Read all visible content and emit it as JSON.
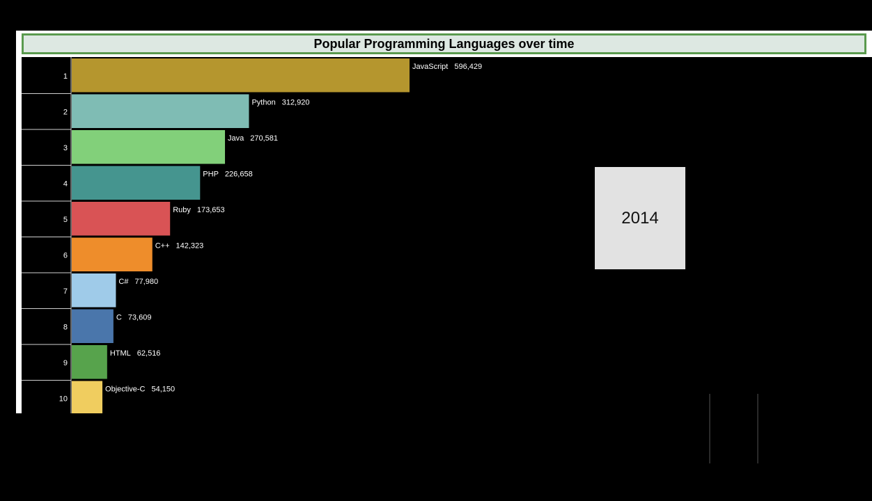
{
  "chart_data": {
    "type": "bar",
    "orientation": "horizontal",
    "title": "Popular Programming Languages over time",
    "year": "2014",
    "ranks": [
      "1",
      "2",
      "3",
      "4",
      "5",
      "6",
      "7",
      "8",
      "9",
      "10"
    ],
    "categories": [
      "JavaScript",
      "Python",
      "Java",
      "PHP",
      "Ruby",
      "C++",
      "C#",
      "C",
      "HTML",
      "Objective-C"
    ],
    "values": [
      596429,
      312920,
      270581,
      226658,
      173653,
      142323,
      77980,
      73609,
      62516,
      54150
    ],
    "value_labels": [
      "596,429",
      "312,920",
      "270,581",
      "226,658",
      "173,653",
      "142,323",
      "77,980",
      "73,609",
      "62,516",
      "54,150"
    ],
    "colors": [
      "#b5962e",
      "#7fbcb4",
      "#82d07a",
      "#45958f",
      "#d95355",
      "#ee8d2b",
      "#9fcbe9",
      "#4a76ab",
      "#57a34c",
      "#f0cd5f"
    ],
    "xlim": [
      0,
      1000000
    ],
    "grid": false,
    "legend": "none"
  }
}
